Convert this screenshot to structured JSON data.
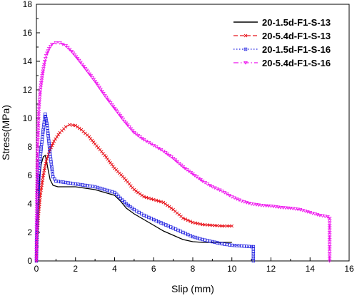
{
  "chart_data": {
    "type": "line",
    "title": "",
    "xlabel": "Slip (mm)",
    "ylabel": "Stress(MPa)",
    "xlim": [
      0,
      16
    ],
    "ylim": [
      0,
      18
    ],
    "xticks": [
      0,
      2,
      4,
      6,
      8,
      10,
      12,
      14,
      16
    ],
    "yticks": [
      0,
      2,
      4,
      6,
      8,
      10,
      12,
      14,
      16,
      18
    ],
    "grid": false,
    "legend_position": "top-right",
    "series": [
      {
        "name": "20-1.5d-F1-S-13",
        "color": "#000000",
        "dash": "solid",
        "marker": "none",
        "x": [
          0,
          0.02,
          0.08,
          0.15,
          0.25,
          0.35,
          0.45,
          0.52,
          0.6,
          0.7,
          0.85,
          1.1,
          1.5,
          2.0,
          2.5,
          3.0,
          3.5,
          4.0,
          4.3,
          4.6,
          5.0,
          5.5,
          6.0,
          6.5,
          7.0,
          7.5,
          8.0,
          8.5,
          9.0,
          9.5,
          10.0
        ],
        "y": [
          0,
          2.0,
          4.0,
          5.6,
          6.8,
          7.3,
          7.4,
          7.0,
          6.4,
          5.7,
          5.3,
          5.2,
          5.2,
          5.2,
          5.1,
          5.0,
          4.8,
          4.6,
          4.2,
          3.7,
          3.3,
          2.9,
          2.5,
          2.1,
          1.8,
          1.5,
          1.35,
          1.3,
          1.3,
          1.3,
          1.3
        ]
      },
      {
        "name": "20-5.4d-F1-S-13",
        "color": "#e8141c",
        "dash": "dashed",
        "marker": "x",
        "x": [
          0,
          0.03,
          0.1,
          0.2,
          0.35,
          0.5,
          0.7,
          0.9,
          1.2,
          1.5,
          1.7,
          2.0,
          2.3,
          2.7,
          3.0,
          3.5,
          4.0,
          4.5,
          5.0,
          5.5,
          6.0,
          6.5,
          7.0,
          7.5,
          8.0,
          8.5,
          9.0,
          9.5,
          10.0
        ],
        "y": [
          0,
          1.5,
          3.0,
          4.6,
          6.0,
          7.0,
          7.8,
          8.4,
          9.0,
          9.4,
          9.55,
          9.5,
          9.2,
          8.7,
          8.2,
          7.4,
          6.5,
          5.8,
          5.0,
          4.5,
          4.3,
          4.1,
          3.6,
          3.0,
          2.7,
          2.55,
          2.5,
          2.45,
          2.45
        ]
      },
      {
        "name": "20-1.5d-F1-S-16",
        "color": "#1c1ce0",
        "dash": "dotted",
        "marker": "square",
        "x": [
          0,
          0.02,
          0.08,
          0.15,
          0.25,
          0.35,
          0.45,
          0.55,
          0.62,
          0.7,
          0.78,
          0.85,
          1.0,
          1.5,
          2.0,
          2.5,
          3.0,
          3.5,
          4.0,
          4.3,
          4.6,
          5.0,
          5.5,
          6.0,
          6.5,
          7.0,
          7.5,
          8.0,
          8.5,
          9.0,
          9.5,
          10.0,
          10.5,
          11.0,
          11.1,
          11.1
        ],
        "y": [
          0,
          2.0,
          4.5,
          6.5,
          8.0,
          9.2,
          10.3,
          9.5,
          8.6,
          7.5,
          6.6,
          5.9,
          5.6,
          5.5,
          5.4,
          5.3,
          5.2,
          5.0,
          4.8,
          4.4,
          4.0,
          3.6,
          3.2,
          2.9,
          2.6,
          2.3,
          2.0,
          1.7,
          1.5,
          1.35,
          1.2,
          1.1,
          1.05,
          1.0,
          1.0,
          0
        ]
      },
      {
        "name": "20-5.4d-F1-S-16",
        "color": "#ee10ee",
        "dash": "dashdot",
        "marker": "triangle-down",
        "x": [
          0,
          0.02,
          0.06,
          0.12,
          0.2,
          0.3,
          0.4,
          0.5,
          0.65,
          0.8,
          1.0,
          1.2,
          1.5,
          1.8,
          2.1,
          2.5,
          3.0,
          3.5,
          4.0,
          4.5,
          5.0,
          5.5,
          6.0,
          6.5,
          7.0,
          7.5,
          8.0,
          8.5,
          9.0,
          9.5,
          10.0,
          10.5,
          11.0,
          11.5,
          12.0,
          12.5,
          13.0,
          13.5,
          14.0,
          14.5,
          14.9,
          15.0,
          15.0
        ],
        "y": [
          0,
          4.0,
          8.0,
          10.5,
          12.0,
          13.0,
          13.8,
          14.4,
          14.9,
          15.2,
          15.3,
          15.3,
          15.1,
          14.7,
          14.2,
          13.5,
          12.6,
          11.6,
          10.7,
          9.8,
          9.0,
          8.5,
          8.1,
          7.7,
          7.2,
          6.6,
          6.1,
          5.6,
          5.2,
          4.9,
          4.5,
          4.2,
          4.0,
          3.9,
          3.85,
          3.75,
          3.7,
          3.6,
          3.4,
          3.2,
          3.1,
          3.0,
          0
        ]
      }
    ]
  }
}
